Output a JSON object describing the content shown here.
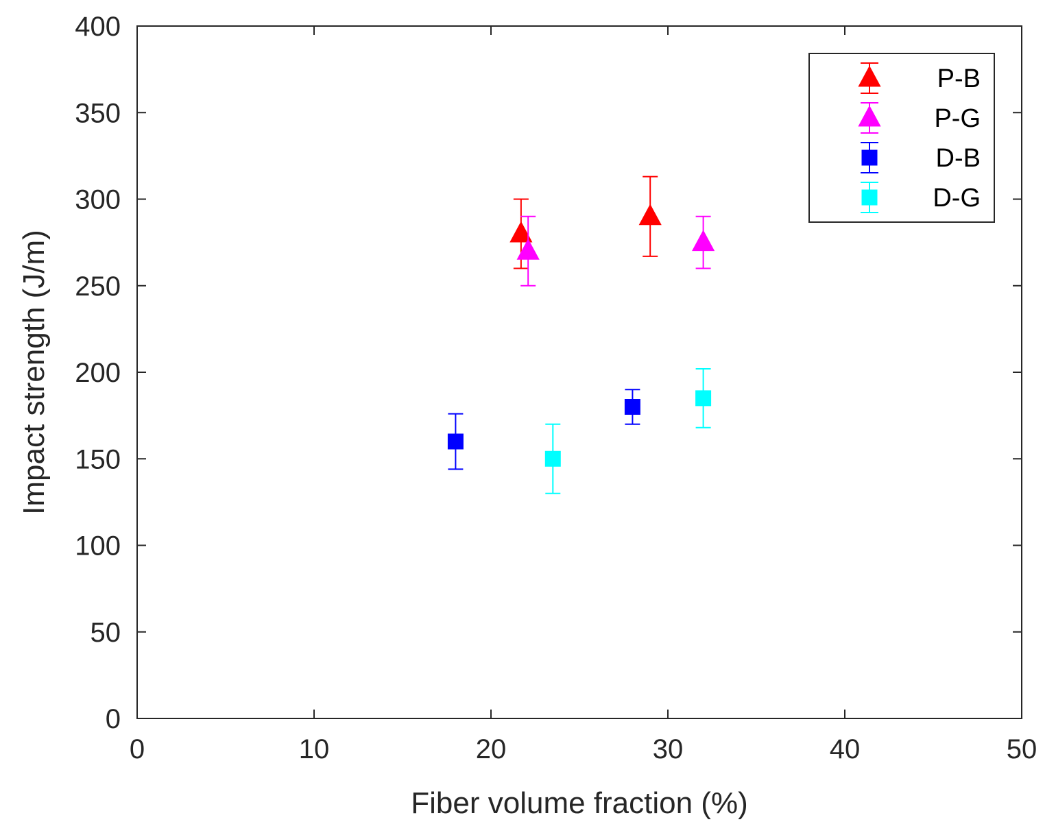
{
  "chart_data": {
    "type": "scatter",
    "title": "",
    "xlabel": "Fiber volume fraction (%)",
    "ylabel": "Impact strength (J/m)",
    "xlim": [
      0,
      50
    ],
    "ylim": [
      0,
      400
    ],
    "xticks": [
      0,
      10,
      20,
      30,
      40,
      50
    ],
    "yticks": [
      0,
      50,
      100,
      150,
      200,
      250,
      300,
      350,
      400
    ],
    "xtick_labels": [
      "0",
      "10",
      "20",
      "30",
      "40",
      "50"
    ],
    "ytick_labels": [
      "0",
      "50",
      "100",
      "150",
      "200",
      "250",
      "300",
      "350",
      "400"
    ],
    "grid": false,
    "legend_position": "top-right",
    "series": [
      {
        "name": "P-B",
        "marker": "triangle",
        "color": "#ff0000",
        "points": [
          {
            "x": 21.7,
            "y": 280,
            "low": 260,
            "high": 300
          },
          {
            "x": 29.0,
            "y": 290,
            "low": 267,
            "high": 313
          }
        ]
      },
      {
        "name": "P-G",
        "marker": "triangle",
        "color": "#ff00ff",
        "points": [
          {
            "x": 22.1,
            "y": 270,
            "low": 250,
            "high": 290
          },
          {
            "x": 32.0,
            "y": 275,
            "low": 260,
            "high": 290
          }
        ]
      },
      {
        "name": "D-B",
        "marker": "square",
        "color": "#0000ff",
        "points": [
          {
            "x": 18.0,
            "y": 160,
            "low": 144,
            "high": 176
          },
          {
            "x": 28.0,
            "y": 180,
            "low": 170,
            "high": 190
          }
        ]
      },
      {
        "name": "D-G",
        "marker": "square",
        "color": "#00ffff",
        "points": [
          {
            "x": 23.5,
            "y": 150,
            "low": 130,
            "high": 170
          },
          {
            "x": 32.0,
            "y": 185,
            "low": 168,
            "high": 202
          }
        ]
      }
    ]
  }
}
